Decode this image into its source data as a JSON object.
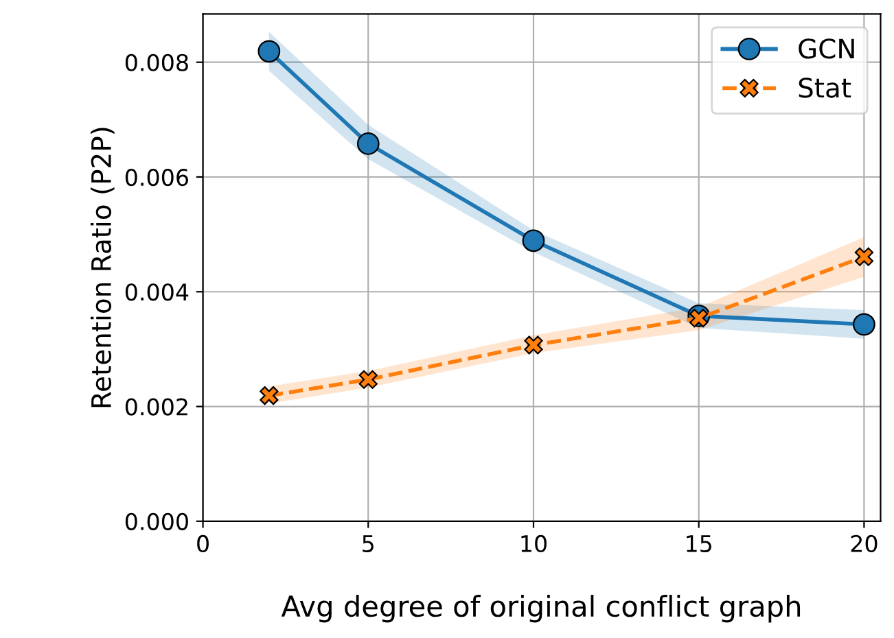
{
  "chart_data": {
    "type": "line",
    "xlabel": "Avg degree of original conflict graph",
    "ylabel": "Retention Ratio (P2P)",
    "x": [
      2,
      5,
      10,
      15,
      20
    ],
    "series": [
      {
        "name": "GCN",
        "color": "#1f77b4",
        "marker": "circle",
        "line_style": "solid",
        "values": [
          0.00819,
          0.00658,
          0.00489,
          0.00358,
          0.00343
        ],
        "lower": [
          0.00785,
          0.00631,
          0.00469,
          0.00337,
          0.00318
        ],
        "upper": [
          0.00853,
          0.00691,
          0.00507,
          0.0038,
          0.00368
        ]
      },
      {
        "name": "Stat",
        "color": "#ff7f0e",
        "marker": "cross",
        "line_style": "dashed",
        "values": [
          0.00219,
          0.00247,
          0.00307,
          0.00354,
          0.00461
        ],
        "lower": [
          0.00205,
          0.00233,
          0.00293,
          0.00333,
          0.00426
        ],
        "upper": [
          0.00235,
          0.00262,
          0.00324,
          0.00373,
          0.00495
        ]
      }
    ],
    "xlim": [
      0,
      20.5
    ],
    "xticks": [
      0,
      5,
      10,
      15,
      20
    ],
    "ylim": [
      0,
      0.00884
    ],
    "yticks": [
      {
        "value": 0,
        "label": "0.000"
      },
      {
        "value": 0.002,
        "label": "0.002"
      },
      {
        "value": 0.004,
        "label": "0.004"
      },
      {
        "value": 0.006,
        "label": "0.006"
      },
      {
        "value": 0.008,
        "label": "0.008"
      }
    ],
    "grid": true,
    "legend": "top right"
  }
}
